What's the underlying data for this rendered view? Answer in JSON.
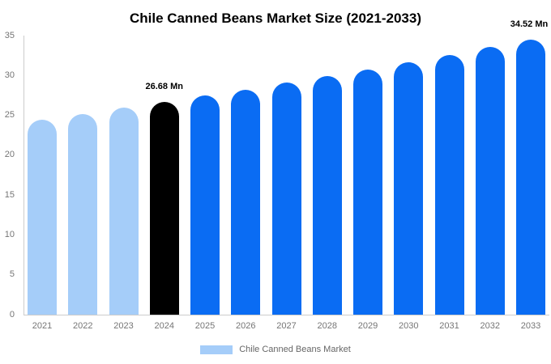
{
  "title": "Chile Canned Beans Market Size (2021-2033)",
  "legend": {
    "label": "Chile Canned Beans Market",
    "swatch_color": "#a5cdf9",
    "position": "bottom"
  },
  "colors": {
    "past": "#a5cdf9",
    "highlight": "#000000",
    "forecast": "#0a6cf3",
    "axis_line": "#cccccc",
    "tick_text": "#757575",
    "annotation_text": "#000000",
    "background": "#ffffff"
  },
  "chart_data": {
    "type": "bar",
    "title": "Chile Canned Beans Market Size (2021-2033)",
    "xlabel": "",
    "ylabel": "",
    "unit": "Mn",
    "categories": [
      "2021",
      "2022",
      "2023",
      "2024",
      "2025",
      "2026",
      "2027",
      "2028",
      "2029",
      "2030",
      "2031",
      "2032",
      "2033"
    ],
    "values": [
      24.49,
      25.2,
      25.93,
      26.68,
      27.45,
      28.25,
      29.07,
      29.91,
      30.78,
      31.67,
      32.59,
      33.54,
      34.52
    ],
    "bar_color_keys": [
      "past",
      "past",
      "past",
      "highlight",
      "forecast",
      "forecast",
      "forecast",
      "forecast",
      "forecast",
      "forecast",
      "forecast",
      "forecast",
      "forecast"
    ],
    "annotations": [
      {
        "category": "2024",
        "text": "26.68 Mn"
      },
      {
        "category": "2033",
        "text": "34.52 Mn"
      }
    ],
    "ylim": [
      0,
      35
    ],
    "yticks": [
      0,
      5,
      10,
      15,
      20,
      25,
      30,
      35
    ],
    "grid": false,
    "legend_entries": [
      "Chile Canned Beans Market"
    ],
    "legend_position": "bottom"
  }
}
